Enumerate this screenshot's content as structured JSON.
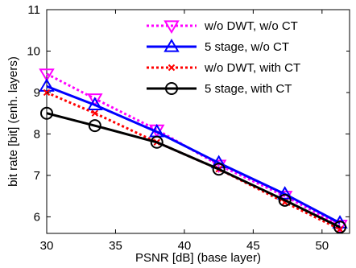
{
  "chart_data": {
    "type": "line",
    "title": "",
    "xlabel": "PSNR [dB] (base layer)",
    "ylabel": "bit rate [bit] (enh. layers)",
    "xlim": [
      30,
      52
    ],
    "ylim": [
      5.6,
      11
    ],
    "xticks": [
      30,
      35,
      40,
      45,
      50
    ],
    "yticks": [
      6,
      7,
      8,
      9,
      10,
      11
    ],
    "grid": false,
    "legend_position": "top-right",
    "series": [
      {
        "name": "w/o DWT, w/o CT",
        "color": "#ff00ff",
        "line_style": "dotted",
        "marker": "triangle-down",
        "x": [
          30.0,
          33.5,
          38.0,
          42.5,
          47.3,
          51.3
        ],
        "y": [
          9.45,
          8.85,
          8.1,
          7.25,
          6.5,
          5.8
        ]
      },
      {
        "name": "5 stage, w/o CT",
        "color": "#0000ff",
        "line_style": "solid",
        "marker": "triangle-up",
        "x": [
          30.0,
          33.5,
          38.0,
          42.5,
          47.3,
          51.3
        ],
        "y": [
          9.15,
          8.7,
          8.05,
          7.3,
          6.55,
          5.85
        ]
      },
      {
        "name": "w/o DWT, with CT",
        "color": "#ff0000",
        "line_style": "dotted",
        "marker": "x",
        "x": [
          30.0,
          33.5,
          38.0,
          42.5,
          47.3,
          51.3
        ],
        "y": [
          9.0,
          8.5,
          7.8,
          7.15,
          6.35,
          5.7
        ]
      },
      {
        "name": "5 stage, with CT",
        "color": "#000000",
        "line_style": "solid",
        "marker": "circle",
        "x": [
          30.0,
          33.5,
          38.0,
          42.5,
          47.3,
          51.3
        ],
        "y": [
          8.5,
          8.2,
          7.8,
          7.15,
          6.4,
          5.75
        ]
      }
    ]
  }
}
